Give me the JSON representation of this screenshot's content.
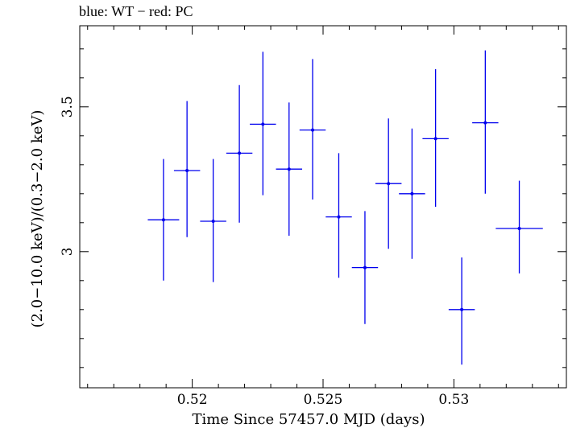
{
  "title": "blue: WT − red: PC",
  "colors": {
    "series": "#0000ee",
    "axes": "#000000",
    "background": "#ffffff"
  },
  "chart_data": {
    "type": "scatter",
    "title": "blue: WT − red: PC",
    "xlabel": "Time Since 57457.0 MJD (days)",
    "ylabel": "(2.0−10.0 keV)/(0.3−2.0 keV)",
    "xlim": [
      0.5157,
      0.5343
    ],
    "ylim": [
      2.53,
      3.78
    ],
    "xticks": [
      0.52,
      0.525,
      0.53
    ],
    "xtick_labels": [
      "0.52",
      "0.525",
      "0.53"
    ],
    "yticks": [
      3,
      3.5
    ],
    "ytick_labels": [
      "3",
      "3.5"
    ],
    "grid": false,
    "series": [
      {
        "color": "#0000ee",
        "points": [
          {
            "x": 0.5189,
            "y": 3.11,
            "x_err": 0.0006,
            "y_lo": 2.9,
            "y_hi": 3.32
          },
          {
            "x": 0.5198,
            "y": 3.28,
            "x_err": 0.0005,
            "y_lo": 3.05,
            "y_hi": 3.52
          },
          {
            "x": 0.5208,
            "y": 3.105,
            "x_err": 0.0005,
            "y_lo": 2.895,
            "y_hi": 3.32
          },
          {
            "x": 0.5218,
            "y": 3.34,
            "x_err": 0.0005,
            "y_lo": 3.1,
            "y_hi": 3.575
          },
          {
            "x": 0.5227,
            "y": 3.44,
            "x_err": 0.0005,
            "y_lo": 3.195,
            "y_hi": 3.69
          },
          {
            "x": 0.5237,
            "y": 3.285,
            "x_err": 0.0005,
            "y_lo": 3.055,
            "y_hi": 3.515
          },
          {
            "x": 0.5246,
            "y": 3.42,
            "x_err": 0.0005,
            "y_lo": 3.18,
            "y_hi": 3.665
          },
          {
            "x": 0.5256,
            "y": 3.12,
            "x_err": 0.0005,
            "y_lo": 2.91,
            "y_hi": 3.34
          },
          {
            "x": 0.5266,
            "y": 2.945,
            "x_err": 0.0005,
            "y_lo": 2.75,
            "y_hi": 3.14
          },
          {
            "x": 0.5275,
            "y": 3.235,
            "x_err": 0.0005,
            "y_lo": 3.01,
            "y_hi": 3.46
          },
          {
            "x": 0.5284,
            "y": 3.2,
            "x_err": 0.0005,
            "y_lo": 2.975,
            "y_hi": 3.425
          },
          {
            "x": 0.5293,
            "y": 3.39,
            "x_err": 0.0005,
            "y_lo": 3.155,
            "y_hi": 3.63
          },
          {
            "x": 0.5303,
            "y": 2.8,
            "x_err": 0.0005,
            "y_lo": 2.61,
            "y_hi": 2.98
          },
          {
            "x": 0.5312,
            "y": 3.445,
            "x_err": 0.0005,
            "y_lo": 3.2,
            "y_hi": 3.695
          },
          {
            "x": 0.5325,
            "y": 3.08,
            "x_err": 0.0009,
            "y_lo": 2.925,
            "y_hi": 3.245
          }
        ]
      }
    ]
  }
}
